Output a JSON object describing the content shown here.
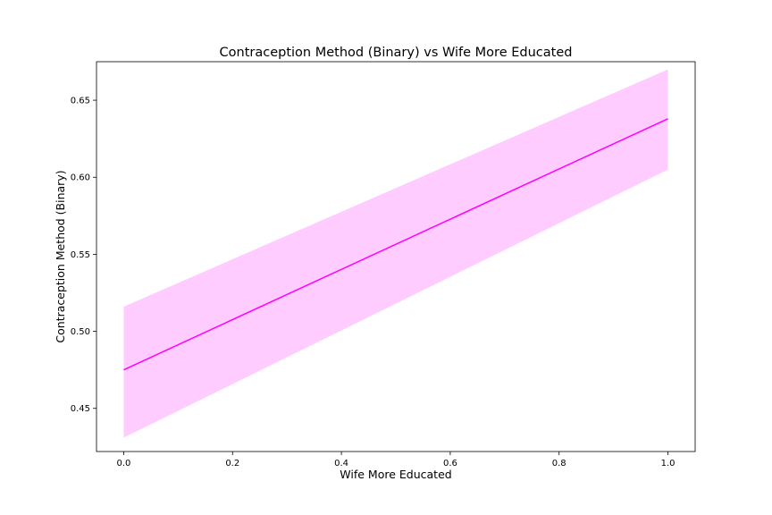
{
  "chart_data": {
    "type": "line",
    "title": "Contraception Method (Binary) vs Wife More Educated",
    "xlabel": "Wife More Educated",
    "ylabel": "Contraception Method (Binary)",
    "xlim": [
      -0.05,
      1.05
    ],
    "ylim": [
      0.422,
      0.675
    ],
    "xticks": [
      0.0,
      0.2,
      0.4,
      0.6,
      0.8,
      1.0
    ],
    "xtick_labels": [
      "0.0",
      "0.2",
      "0.4",
      "0.6",
      "0.8",
      "1.0"
    ],
    "yticks": [
      0.45,
      0.5,
      0.55,
      0.6,
      0.65
    ],
    "ytick_labels": [
      "0.45",
      "0.50",
      "0.55",
      "0.60",
      "0.65"
    ],
    "grid": false,
    "series": [
      {
        "x": [
          0.0,
          1.0
        ],
        "y": [
          0.475,
          0.638
        ],
        "ci_lower": [
          0.431,
          0.605
        ],
        "ci_upper": [
          0.516,
          0.67
        ],
        "line_color": "#ff00ff",
        "band_color": "#ffccff"
      }
    ]
  }
}
